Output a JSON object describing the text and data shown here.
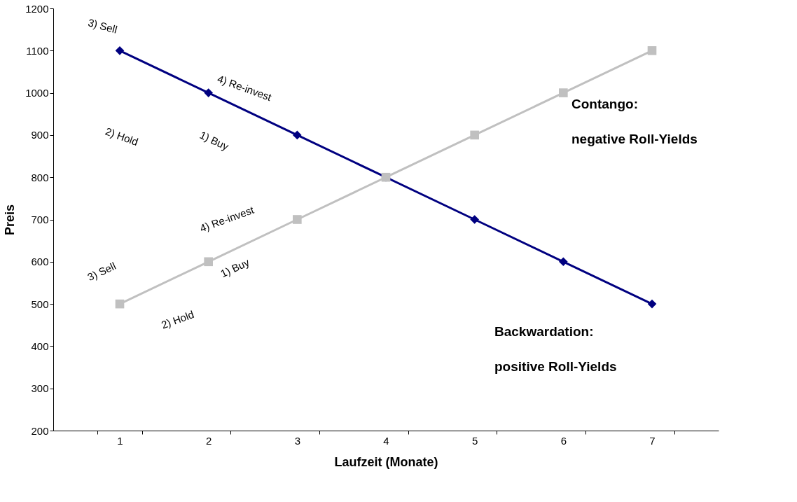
{
  "chart_data": {
    "type": "line",
    "xlabel": "Laufzeit (Monate)",
    "ylabel": "Preis",
    "categories": [
      "1",
      "2",
      "3",
      "4",
      "5",
      "6",
      "7"
    ],
    "series": [
      {
        "color": "#000080",
        "marker": "diamond",
        "values": [
          1100,
          1000,
          900,
          800,
          700,
          600,
          500
        ]
      },
      {
        "color": "#c0c0c0",
        "marker": "square",
        "values": [
          500,
          600,
          700,
          800,
          900,
          1000,
          1100
        ]
      }
    ],
    "ylim": [
      200,
      1200
    ],
    "yticks": [
      200,
      300,
      400,
      500,
      600,
      700,
      800,
      900,
      1000,
      1100,
      1200
    ],
    "line_style": "solid",
    "annotations": [
      "3) Sell",
      "4) Re-invest",
      "2) Hold",
      "1) Buy",
      "4) Re-invest",
      "3) Sell",
      "1) Buy",
      "2) Hold",
      "Contango:",
      "negative Roll-Yields",
      "Backwardation:",
      "positive Roll-Yields"
    ]
  }
}
